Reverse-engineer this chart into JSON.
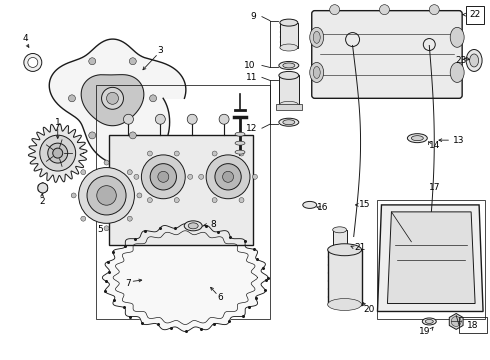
{
  "bg_color": "#ffffff",
  "lc": "#1a1a1a",
  "fig_w": 4.9,
  "fig_h": 3.6,
  "dpi": 100,
  "fs": 6.5,
  "lw": 0.7
}
